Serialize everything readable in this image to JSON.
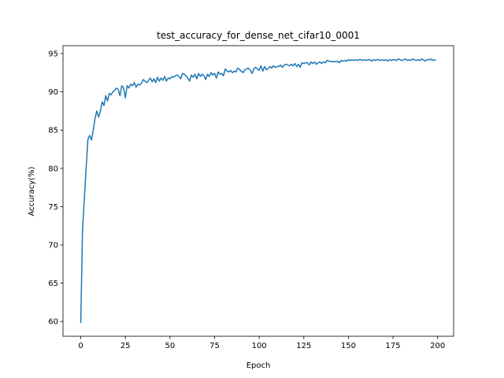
{
  "chart_data": {
    "type": "line",
    "title": "test_accuracy_for_dense_net_cifar10_0001",
    "x_label": "Epoch",
    "y_label": "Accuracy(%)",
    "color": "#1f77b4",
    "x": [
      0,
      1,
      2,
      3,
      4,
      5,
      6,
      7,
      8,
      9,
      10,
      11,
      12,
      13,
      14,
      15,
      16,
      17,
      18,
      19,
      20,
      21,
      22,
      23,
      24,
      25,
      26,
      27,
      28,
      29,
      30,
      31,
      32,
      33,
      34,
      35,
      36,
      37,
      38,
      39,
      40,
      41,
      42,
      43,
      44,
      45,
      46,
      47,
      48,
      49,
      50,
      51,
      52,
      53,
      54,
      55,
      56,
      57,
      58,
      59,
      60,
      61,
      62,
      63,
      64,
      65,
      66,
      67,
      68,
      69,
      70,
      71,
      72,
      73,
      74,
      75,
      76,
      77,
      78,
      79,
      80,
      81,
      82,
      83,
      84,
      85,
      86,
      87,
      88,
      89,
      90,
      91,
      92,
      93,
      94,
      95,
      96,
      97,
      98,
      99,
      100,
      101,
      102,
      103,
      104,
      105,
      106,
      107,
      108,
      109,
      110,
      111,
      112,
      113,
      114,
      115,
      116,
      117,
      118,
      119,
      120,
      121,
      122,
      123,
      124,
      125,
      126,
      127,
      128,
      129,
      130,
      131,
      132,
      133,
      134,
      135,
      136,
      137,
      138,
      139,
      140,
      141,
      142,
      143,
      144,
      145,
      146,
      147,
      148,
      149,
      150,
      151,
      152,
      153,
      154,
      155,
      156,
      157,
      158,
      159,
      160,
      161,
      162,
      163,
      164,
      165,
      166,
      167,
      168,
      169,
      170,
      171,
      172,
      173,
      174,
      175,
      176,
      177,
      178,
      179,
      180,
      181,
      182,
      183,
      184,
      185,
      186,
      187,
      188,
      189,
      190,
      191,
      192,
      193,
      194,
      195,
      196,
      197,
      198,
      199
    ],
    "values": [
      59.8,
      72,
      76,
      80,
      83.8,
      84.3,
      83.7,
      85,
      86.5,
      87.5,
      86.7,
      87.5,
      88.7,
      88.2,
      89.5,
      88.8,
      89.8,
      89.6,
      90.0,
      90.2,
      90.5,
      90.3,
      89.5,
      90.8,
      90.5,
      89.2,
      90.8,
      90.5,
      91.0,
      90.8,
      91.2,
      90.6,
      91.0,
      90.9,
      91.1,
      91.6,
      91.4,
      91.2,
      91.5,
      91.8,
      91.3,
      91.7,
      91.2,
      91.9,
      91.4,
      91.8,
      91.5,
      92.0,
      91.4,
      91.8,
      91.7,
      92.0,
      91.9,
      92.1,
      92.2,
      92.0,
      91.7,
      92.4,
      92.3,
      92.1,
      91.8,
      91.4,
      92.2,
      91.9,
      92.3,
      91.7,
      92.4,
      92.0,
      92.3,
      92.1,
      91.6,
      92.3,
      92.0,
      92.5,
      92.2,
      92.4,
      91.8,
      92.6,
      92.3,
      92.4,
      92.1,
      93.0,
      92.7,
      92.6,
      92.8,
      92.5,
      92.7,
      92.6,
      93.1,
      92.9,
      92.7,
      92.5,
      92.9,
      93.0,
      93.1,
      92.8,
      92.4,
      93.0,
      93.2,
      93.0,
      92.8,
      93.4,
      92.7,
      93.3,
      92.9,
      93.0,
      93.3,
      93.1,
      93.4,
      93.2,
      93.3,
      93.3,
      93.5,
      93.2,
      93.5,
      93.6,
      93.5,
      93.4,
      93.6,
      93.4,
      93.7,
      93.3,
      93.6,
      93.2,
      93.8,
      93.7,
      93.8,
      93.8,
      93.5,
      93.9,
      93.7,
      93.9,
      93.6,
      93.8,
      93.9,
      93.7,
      93.9,
      93.8,
      94.1,
      94.0,
      94.0,
      93.9,
      94.0,
      93.9,
      94.0,
      93.8,
      94.1,
      94.0,
      94.1,
      94.0,
      94.2,
      94.1,
      94.2,
      94.1,
      94.2,
      94.1,
      94.2,
      94.2,
      94.1,
      94.2,
      94.1,
      94.2,
      94.2,
      94.0,
      94.2,
      94.1,
      94.2,
      94.2,
      94.1,
      94.2,
      94.1,
      94.2,
      94.0,
      94.2,
      94.1,
      94.2,
      94.2,
      94.1,
      94.3,
      94.2,
      94.1,
      94.2,
      94.3,
      94.1,
      94.2,
      94.1,
      94.3,
      94.2,
      94.1,
      94.2,
      94.1,
      94.3,
      94.2,
      94.0,
      94.2,
      94.2,
      94.3,
      94.1,
      94.2,
      94.1
    ],
    "xlim": [
      -9.95,
      208.95
    ],
    "ylim": [
      58.07,
      96.03
    ],
    "xticks": [
      0,
      25,
      50,
      75,
      100,
      125,
      150,
      175,
      200
    ],
    "yticks": [
      60,
      65,
      70,
      75,
      80,
      85,
      90,
      95
    ]
  }
}
